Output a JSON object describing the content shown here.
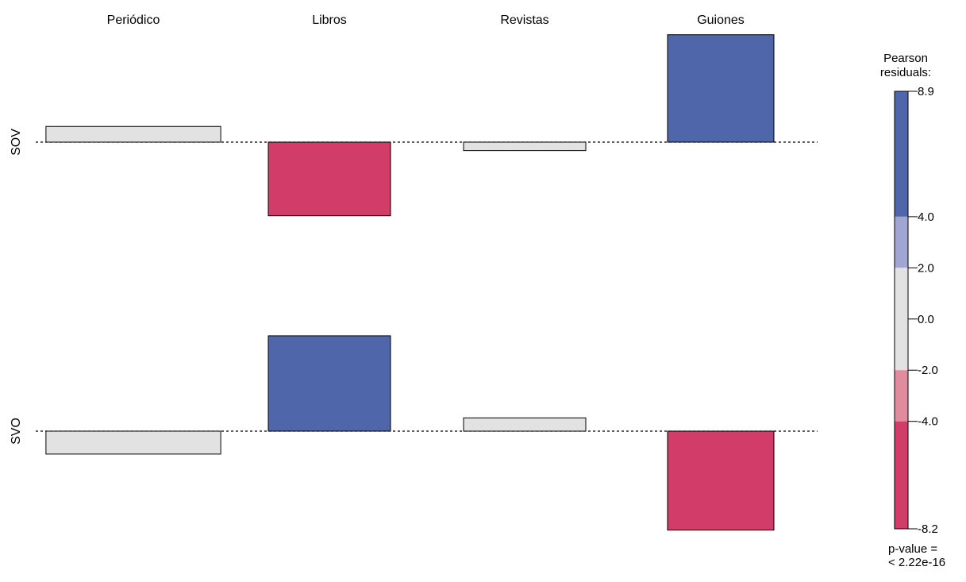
{
  "chart_data": {
    "type": "association",
    "columns": [
      "Periódico",
      "Libros",
      "Revistas",
      "Guiones"
    ],
    "rows": [
      "SOV",
      "SVO"
    ],
    "residuals": [
      [
        1.3,
        -6.1,
        -0.7,
        8.9
      ],
      [
        -1.9,
        7.9,
        1.1,
        -8.2
      ]
    ],
    "column_widths": [
      1.43,
      1.0,
      1.0,
      0.87
    ],
    "legend": {
      "title_line1": "Pearson",
      "title_line2": "residuals:",
      "ticks": [
        "8.9",
        "4.0",
        "2.0",
        "0.0",
        "-2.0",
        "-4.0",
        "-8.2"
      ],
      "tick_values": [
        8.9,
        4.0,
        2.0,
        0.0,
        -2.0,
        -4.0,
        -8.2
      ],
      "range": [
        -8.2,
        8.9
      ],
      "bins": [
        {
          "from": 4.0,
          "to": 8.9,
          "color": "#4f67aa"
        },
        {
          "from": 2.0,
          "to": 4.0,
          "color": "#a1a5d2"
        },
        {
          "from": -2.0,
          "to": 2.0,
          "color": "#e2e2e2"
        },
        {
          "from": -4.0,
          "to": -2.0,
          "color": "#e18c9e"
        },
        {
          "from": -8.2,
          "to": -4.0,
          "color": "#d23c69"
        }
      ]
    },
    "pvalue_line1": "p-value =",
    "pvalue_line2": "< 2.22e-16",
    "grid": false
  }
}
